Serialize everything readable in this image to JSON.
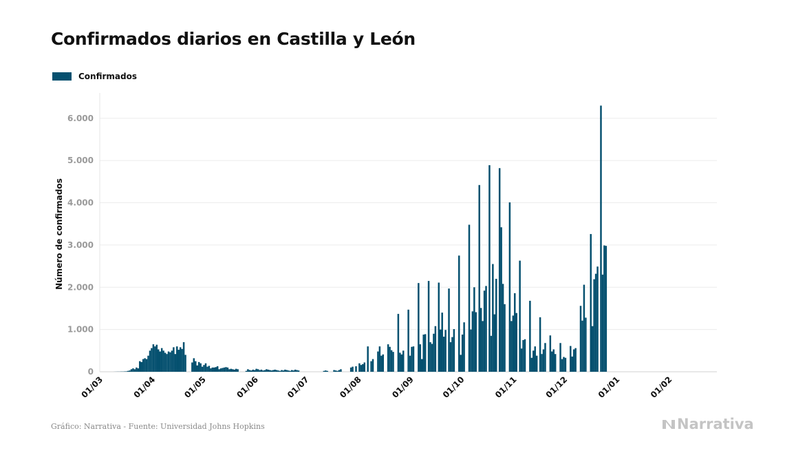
{
  "title": "Confirmados diarios en Castilla y León",
  "legend": {
    "label": "Confirmados",
    "color": "#05506f"
  },
  "footer": "Gráfico: Narrativa - Fuente: Universidad Johns Hopkins",
  "brand": "Narrativa",
  "chart_data": {
    "type": "bar",
    "title": "Confirmados diarios en Castilla y León",
    "ylabel": "Número de confirmados",
    "xlabel": "",
    "ylim": [
      0,
      6600
    ],
    "yticks": [
      0,
      1000,
      2000,
      3000,
      4000,
      5000,
      6000
    ],
    "ytick_labels": [
      "0",
      "1.000",
      "2.000",
      "3.000",
      "4.000",
      "5.000",
      "6.000"
    ],
    "xticks": [
      {
        "day": 0,
        "label": "01/03"
      },
      {
        "day": 31,
        "label": "01/04"
      },
      {
        "day": 61,
        "label": "01/05"
      },
      {
        "day": 92,
        "label": "01/06"
      },
      {
        "day": 122,
        "label": "01/07"
      },
      {
        "day": 153,
        "label": "01/08"
      },
      {
        "day": 184,
        "label": "01/09"
      },
      {
        "day": 214,
        "label": "01/10"
      },
      {
        "day": 245,
        "label": "01/11"
      },
      {
        "day": 275,
        "label": "01/12"
      },
      {
        "day": 306,
        "label": "01/01"
      },
      {
        "day": 337,
        "label": "01/02"
      }
    ],
    "x_start": "01/03",
    "grid": true,
    "legend_position": "top-left",
    "series": [
      {
        "name": "Confirmados",
        "color": "#05506f",
        "values": [
          0,
          0,
          0,
          0,
          0,
          0,
          0,
          1,
          2,
          3,
          3,
          5,
          5,
          8,
          10,
          20,
          30,
          60,
          80,
          60,
          100,
          80,
          250,
          230,
          300,
          320,
          300,
          380,
          500,
          560,
          650,
          600,
          640,
          530,
          480,
          560,
          500,
          450,
          420,
          480,
          460,
          500,
          580,
          420,
          600,
          520,
          580,
          540,
          700,
          400,
          0,
          0,
          0,
          220,
          320,
          250,
          150,
          230,
          200,
          120,
          160,
          200,
          120,
          140,
          80,
          100,
          100,
          110,
          130,
          60,
          80,
          90,
          100,
          110,
          100,
          60,
          70,
          60,
          50,
          70,
          60,
          0,
          0,
          0,
          0,
          20,
          60,
          40,
          30,
          50,
          40,
          70,
          60,
          40,
          50,
          30,
          40,
          60,
          50,
          40,
          30,
          40,
          50,
          40,
          30,
          20,
          40,
          30,
          50,
          40,
          30,
          20,
          40,
          30,
          50,
          40,
          30,
          0,
          0,
          0,
          0,
          0,
          0,
          0,
          0,
          0,
          0,
          0,
          0,
          0,
          0,
          20,
          30,
          20,
          0,
          0,
          0,
          40,
          30,
          20,
          40,
          60,
          0,
          0,
          0,
          0,
          0,
          100,
          120,
          0,
          130,
          0,
          200,
          160,
          180,
          220,
          0,
          600,
          0,
          250,
          300,
          0,
          0,
          480,
          600,
          380,
          410,
          0,
          0,
          650,
          590,
          510,
          470,
          0,
          0,
          1370,
          450,
          410,
          500,
          0,
          0,
          1470,
          380,
          590,
          600,
          0,
          0,
          2100,
          650,
          300,
          880,
          890,
          0,
          2150,
          700,
          660,
          900,
          1080,
          0,
          2110,
          1000,
          1400,
          830,
          990,
          0,
          1970,
          700,
          820,
          1010,
          0,
          0,
          2750,
          400,
          880,
          1170,
          0,
          0,
          3480,
          1000,
          1430,
          2000,
          1410,
          0,
          4420,
          1510,
          1200,
          1920,
          2030,
          0,
          4890,
          850,
          2550,
          1360,
          2200,
          0,
          4820,
          3420,
          2080,
          1600,
          0,
          0,
          4010,
          1200,
          1330,
          1860,
          1390,
          0,
          2630,
          550,
          750,
          770,
          0,
          0,
          1680,
          330,
          500,
          600,
          380,
          0,
          1290,
          420,
          530,
          680,
          0,
          0,
          860,
          480,
          530,
          420,
          0,
          0,
          680,
          300,
          350,
          330,
          0,
          0,
          610,
          360,
          530,
          560,
          0,
          0,
          1560,
          1210,
          2060,
          1280,
          0,
          0,
          3260,
          1080,
          2190,
          2320,
          2490,
          0,
          6300,
          2300,
          2990,
          2980,
          0,
          0,
          0,
          0,
          0,
          0,
          0,
          0,
          0
        ]
      }
    ]
  }
}
